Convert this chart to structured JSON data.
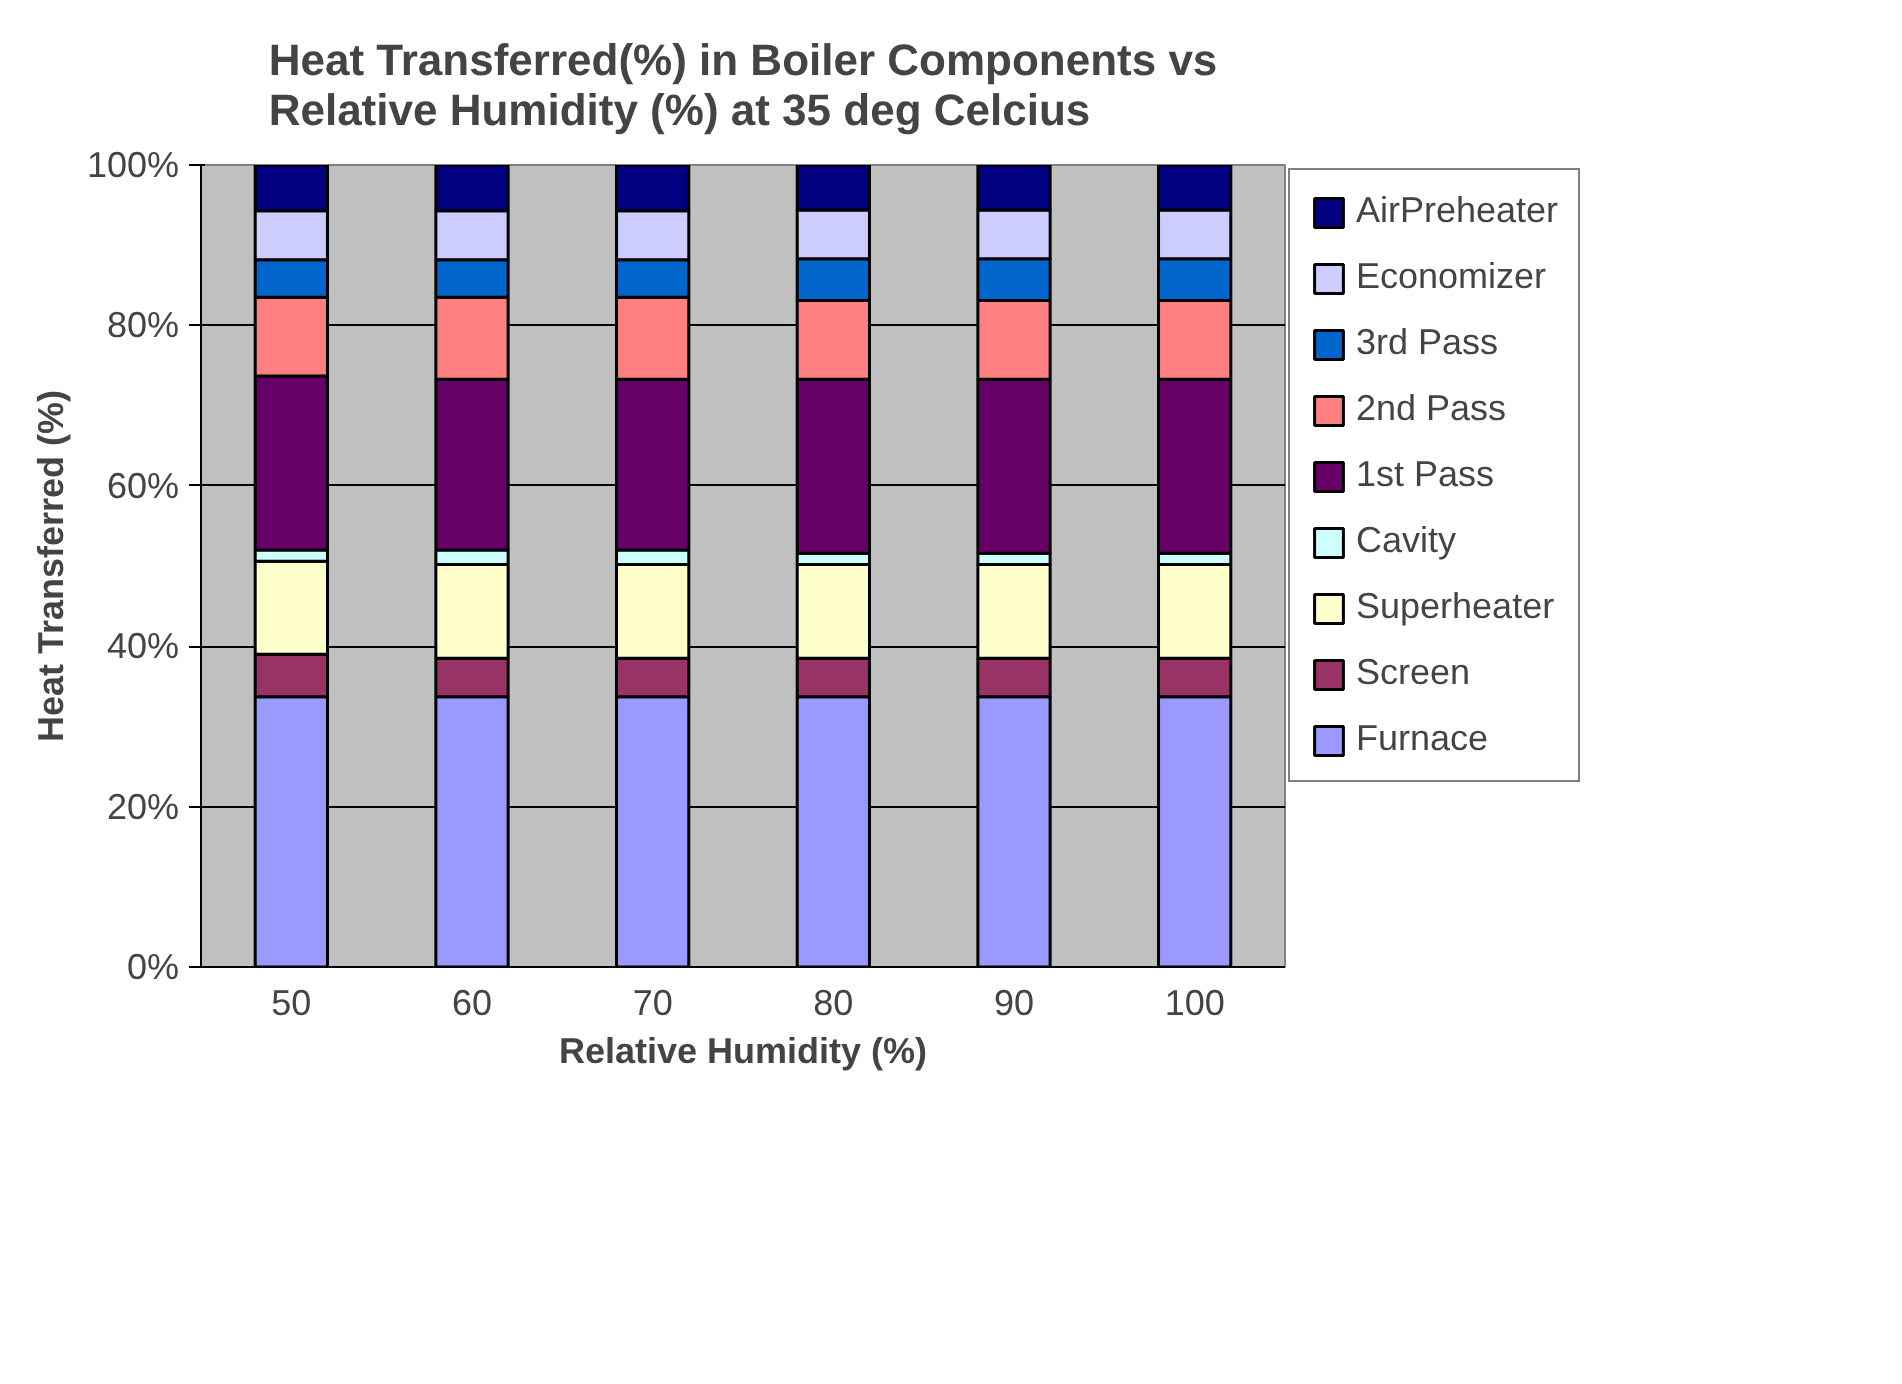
{
  "chart_data": {
    "type": "bar",
    "stacked": true,
    "title": "Heat Transferred(%) in Boiler Components vs Relative Humidity (%) at 35 deg Celcius",
    "xlabel": "Relative Humidity (%)",
    "ylabel": "Heat Transferred (%)",
    "categories": [
      "50",
      "60",
      "70",
      "80",
      "90",
      "100"
    ],
    "ylim": [
      0,
      100
    ],
    "yticks": [
      {
        "value": 0,
        "label": "0%"
      },
      {
        "value": 20,
        "label": "20%"
      },
      {
        "value": 40,
        "label": "40%"
      },
      {
        "value": 60,
        "label": "60%"
      },
      {
        "value": 80,
        "label": "80%"
      },
      {
        "value": 100,
        "label": "100%"
      }
    ],
    "grid": "y",
    "legend": "right",
    "series": [
      {
        "name": "Furnace",
        "color": "#9999ff",
        "values": [
          33.7,
          33.7,
          33.7,
          33.7,
          33.7,
          33.7
        ]
      },
      {
        "name": "Screen",
        "color": "#993366",
        "values": [
          5.3,
          4.8,
          4.8,
          4.8,
          4.8,
          4.8
        ]
      },
      {
        "name": "Superheater",
        "color": "#ffffcc",
        "values": [
          11.6,
          11.7,
          11.7,
          11.7,
          11.7,
          11.7
        ]
      },
      {
        "name": "Cavity",
        "color": "#ccffff",
        "values": [
          1.4,
          1.8,
          1.8,
          1.4,
          1.4,
          1.4
        ]
      },
      {
        "name": "1st Pass",
        "color": "#660066",
        "values": [
          21.7,
          21.3,
          21.3,
          21.7,
          21.7,
          21.7
        ]
      },
      {
        "name": "2nd Pass",
        "color": "#ff8080",
        "values": [
          9.8,
          10.2,
          10.2,
          9.8,
          9.8,
          9.8
        ]
      },
      {
        "name": "3rd Pass",
        "color": "#0066cc",
        "values": [
          4.7,
          4.7,
          4.7,
          5.2,
          5.2,
          5.2
        ]
      },
      {
        "name": "Economizer",
        "color": "#ccccff",
        "values": [
          6.1,
          6.1,
          6.1,
          6.1,
          6.1,
          6.1
        ]
      },
      {
        "name": "AirPreheater",
        "color": "#000080",
        "values": [
          5.7,
          5.7,
          5.7,
          5.7,
          5.7,
          5.7
        ]
      }
    ]
  }
}
